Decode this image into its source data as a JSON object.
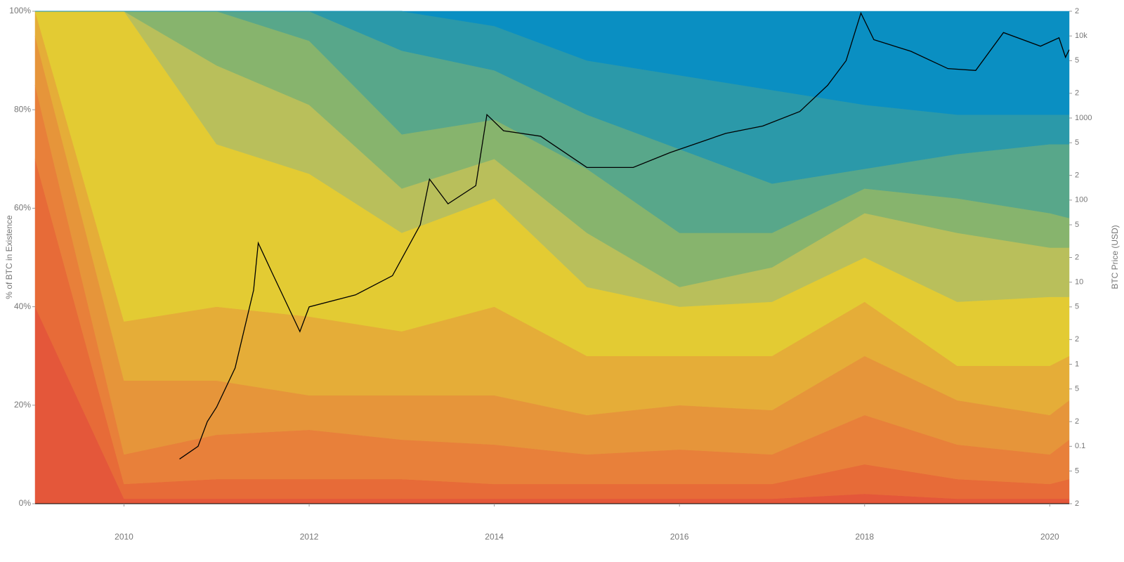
{
  "chart_data": {
    "type": "stacked-area",
    "y_label": "% of BTC in Existence",
    "y2_label": "BTC Price (USD)",
    "x": [
      2009.04,
      2010,
      2011,
      2012,
      2013,
      2014,
      2015,
      2016,
      2017,
      2018,
      2019,
      2020,
      2020.21
    ],
    "xlim": [
      2009.04,
      2020.21
    ],
    "xticks": [
      2010,
      2012,
      2014,
      2016,
      2018,
      2020
    ],
    "ylim": [
      0,
      100
    ],
    "yticks": [
      {
        "value": 0,
        "label": "0%"
      },
      {
        "value": 20,
        "label": "20%"
      },
      {
        "value": 40,
        "label": "40%"
      },
      {
        "value": 60,
        "label": "60%"
      },
      {
        "value": 80,
        "label": "80%"
      },
      {
        "value": 100,
        "label": "100%"
      }
    ],
    "y2log": true,
    "y2lim": [
      0.02,
      20000
    ],
    "y2ticks": [
      {
        "value": 20000,
        "label": "2"
      },
      {
        "value": 10000,
        "label": "10k"
      },
      {
        "value": 5000,
        "label": "5"
      },
      {
        "value": 2000,
        "label": "2"
      },
      1000,
      {
        "value": 500,
        "label": "5"
      },
      {
        "value": 200,
        "label": "2"
      },
      100,
      {
        "value": 50,
        "label": "5"
      },
      {
        "value": 20,
        "label": "2"
      },
      10,
      5,
      2,
      1,
      {
        "value": 0.5,
        "label": "5"
      },
      {
        "value": 0.2,
        "label": "2"
      },
      0.1,
      {
        "value": 0.05,
        "label": "5"
      },
      {
        "value": 0.02,
        "label": "2"
      }
    ],
    "series": [
      {
        "color": "#e4573a",
        "values": [
          40,
          1,
          1,
          1,
          1,
          1,
          1,
          1,
          1,
          2,
          1,
          1,
          1
        ]
      },
      {
        "color": "#e76b38",
        "values": [
          30,
          3,
          4,
          4,
          4,
          3,
          3,
          3,
          3,
          6,
          4,
          3,
          4
        ]
      },
      {
        "color": "#e8803a",
        "values": [
          15,
          6,
          9,
          10,
          8,
          8,
          6,
          7,
          6,
          10,
          7,
          6,
          8
        ]
      },
      {
        "color": "#e6953a",
        "values": [
          10,
          15,
          11,
          7,
          9,
          10,
          8,
          9,
          9,
          12,
          9,
          8,
          8
        ]
      },
      {
        "color": "#e5ad38",
        "values": [
          5,
          12,
          15,
          16,
          13,
          18,
          12,
          10,
          11,
          11,
          7,
          10,
          9
        ]
      },
      {
        "color": "#e3cb33",
        "values": [
          0,
          63,
          33,
          29,
          20,
          22,
          14,
          10,
          11,
          9,
          13,
          14,
          12
        ]
      },
      {
        "color": "#b9bf5b",
        "values": [
          0,
          0,
          16,
          14,
          9,
          8,
          11,
          4,
          7,
          9,
          14,
          10,
          10
        ]
      },
      {
        "color": "#87b46d",
        "values": [
          0,
          0,
          11,
          13,
          11,
          8,
          13,
          11,
          7,
          5,
          7,
          7,
          6
        ]
      },
      {
        "color": "#58a78a",
        "values": [
          0,
          0,
          0,
          6,
          17,
          10,
          11,
          17,
          10,
          4,
          9,
          14,
          15
        ]
      },
      {
        "color": "#2b99a9",
        "values": [
          0,
          0,
          0,
          0,
          8,
          9,
          11,
          15,
          19,
          13,
          8,
          6,
          6
        ]
      },
      {
        "color": "#0a8fc2",
        "values": [
          0,
          0,
          0,
          0,
          0,
          3,
          10,
          13,
          16,
          19,
          21,
          21,
          21
        ]
      },
      {
        "color": "#000000",
        "axis": "y2",
        "type": "line",
        "x": [
          2010.6,
          2010.8,
          2010.9,
          2011.0,
          2011.2,
          2011.4,
          2011.45,
          2011.6,
          2011.9,
          2012.0,
          2012.5,
          2012.9,
          2013.2,
          2013.3,
          2013.5,
          2013.8,
          2013.92,
          2014.1,
          2014.5,
          2015.0,
          2015.5,
          2015.9,
          2016.5,
          2016.9,
          2017.3,
          2017.6,
          2017.8,
          2017.96,
          2018.1,
          2018.5,
          2018.9,
          2019.2,
          2019.5,
          2019.9,
          2020.1,
          2020.17,
          2020.21
        ],
        "values": [
          0.07,
          0.1,
          0.2,
          0.3,
          0.9,
          8,
          30,
          13,
          2.5,
          5,
          7,
          12,
          50,
          180,
          90,
          150,
          1100,
          700,
          600,
          250,
          250,
          380,
          650,
          800,
          1200,
          2500,
          5000,
          19000,
          9000,
          6500,
          4000,
          3800,
          11000,
          7500,
          9500,
          5500,
          6800
        ]
      }
    ]
  }
}
